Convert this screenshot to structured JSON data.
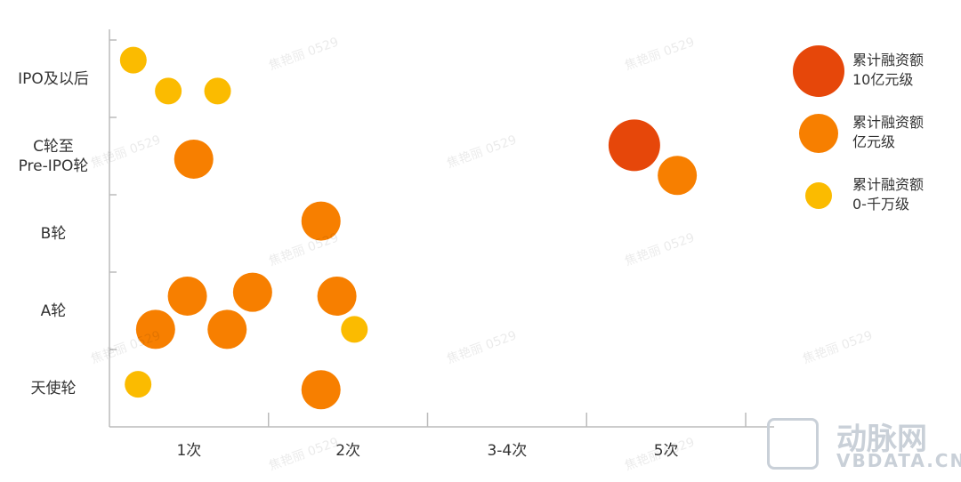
{
  "chart_data": {
    "type": "bubble",
    "y_categories": [
      "天使轮",
      "A轮",
      "B轮",
      "C轮至\nPre-IPO轮",
      "IPO及以后"
    ],
    "x_categories": [
      "1次",
      "2次",
      "3-4次",
      "5次"
    ],
    "xlim": [
      0,
      4
    ],
    "ylim": [
      0,
      5
    ],
    "xticks": [
      0,
      1,
      2,
      3,
      4
    ],
    "yticks": [
      1,
      2,
      3,
      4,
      5
    ],
    "series": [
      {
        "name": "累计融资额\n10亿元级",
        "color": "#e6470a",
        "x": [
          3.3
        ],
        "y": [
          3.64
        ]
      },
      {
        "name": "累计融资额\n亿元级",
        "color": "#f77f00",
        "x": [
          0.53,
          3.57,
          1.33,
          0.49,
          0.9,
          1.43,
          0.29,
          0.74,
          1.33
        ],
        "y": [
          3.46,
          3.25,
          2.66,
          1.69,
          1.74,
          1.69,
          1.26,
          1.26,
          0.48
        ]
      },
      {
        "name": "累计融资额\n0-千万级",
        "color": "#fbbb00",
        "x": [
          0.15,
          0.37,
          0.68,
          1.54,
          0.18
        ],
        "y": [
          4.74,
          4.34,
          4.34,
          1.26,
          0.55
        ]
      }
    ]
  },
  "watermark": "焦艳丽 0529",
  "logo": {
    "name": "动脉网",
    "url": "VBDATA.CN"
  }
}
